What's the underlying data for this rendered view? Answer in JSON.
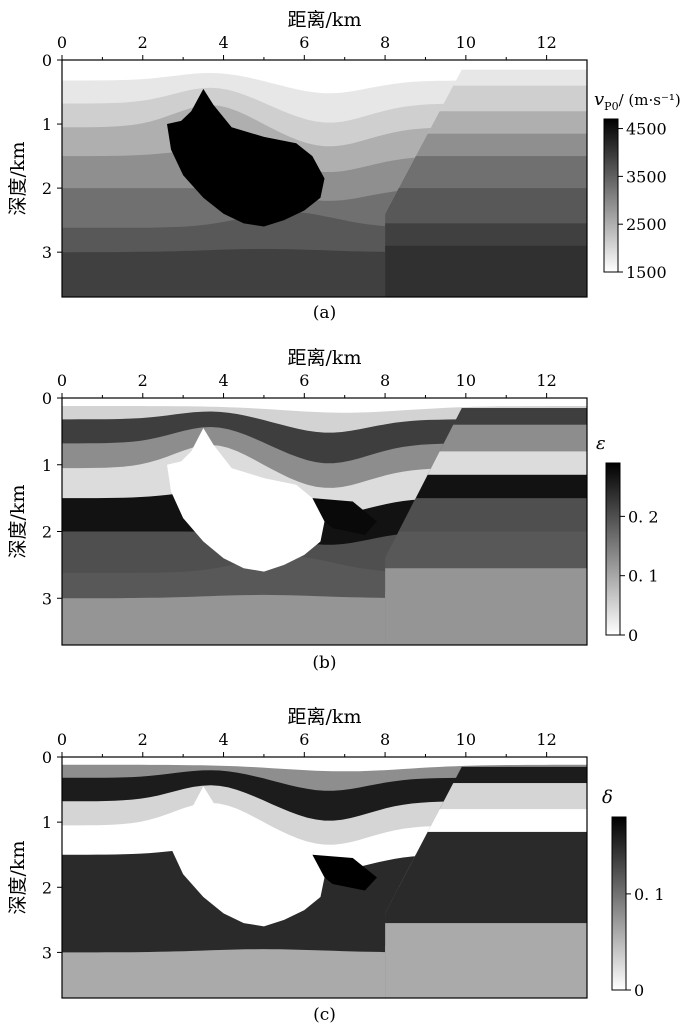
{
  "chart_data": [
    {
      "type": "heatmap",
      "panel_label": "(a)",
      "xlabel": "距离/km",
      "ylabel": "深度/km",
      "x_ticks": [
        0,
        2,
        4,
        6,
        8,
        10,
        12
      ],
      "y_ticks": [
        0,
        1,
        2,
        3
      ],
      "xlim": [
        0,
        13
      ],
      "ylim": [
        0,
        3.7
      ],
      "colorbar": {
        "label_symbol": "v",
        "label_subscript": "P0",
        "label_unit": "/ (m·s⁻¹)",
        "ticks": [
          1500,
          2500,
          3500,
          4500
        ],
        "range": [
          1500,
          4700
        ],
        "colormap": "white-to-black"
      },
      "salt_value": 4700,
      "layers": [
        {
          "layer": 1,
          "value": 1500
        },
        {
          "layer": 2,
          "value": 1800
        },
        {
          "layer": 3,
          "value": 2100
        },
        {
          "layer": 4,
          "value": 2500
        },
        {
          "layer": 5,
          "value": 2900
        },
        {
          "layer": 6,
          "value": 3300
        },
        {
          "layer": 7,
          "value": 3600
        },
        {
          "layer": 8,
          "value": 3900
        },
        {
          "layer": 9,
          "value": 4100
        }
      ]
    },
    {
      "type": "heatmap",
      "panel_label": "(b)",
      "xlabel": "距离/km",
      "ylabel": "深度/km",
      "x_ticks": [
        0,
        2,
        4,
        6,
        8,
        10,
        12
      ],
      "y_ticks": [
        0,
        1,
        2,
        3
      ],
      "xlim": [
        0,
        13
      ],
      "ylim": [
        0,
        3.7
      ],
      "colorbar": {
        "label_symbol": "ε",
        "label_subscript": "",
        "label_unit": "",
        "ticks": [
          0,
          0.1,
          0.2
        ],
        "range": [
          0,
          0.29
        ],
        "colormap": "white-to-black"
      },
      "salt_value": 0,
      "layers": [
        {
          "layer": 1,
          "value": 0.05
        },
        {
          "layer": 2,
          "value": 0.22
        },
        {
          "layer": 3,
          "value": 0.13
        },
        {
          "layer": 4,
          "value": 0.04
        },
        {
          "layer": 5,
          "value": 0.27
        },
        {
          "layer": 6,
          "value": 0.2
        },
        {
          "layer": 7,
          "value": 0.19
        },
        {
          "layer": 8,
          "value": 0.12
        },
        {
          "layer": 9,
          "value": 0.12
        }
      ],
      "lens_value": 0.28
    },
    {
      "type": "heatmap",
      "panel_label": "(c)",
      "xlabel": "距离/km",
      "ylabel": "深度/km",
      "x_ticks": [
        0,
        2,
        4,
        6,
        8,
        10,
        12
      ],
      "y_ticks": [
        0,
        1,
        2,
        3
      ],
      "xlim": [
        0,
        13
      ],
      "ylim": [
        0,
        3.7
      ],
      "colorbar": {
        "label_symbol": "δ",
        "label_subscript": "",
        "label_unit": "",
        "ticks": [
          0,
          0.1
        ],
        "range": [
          0,
          0.18
        ],
        "colormap": "white-to-black"
      },
      "salt_value": 0,
      "layers": [
        {
          "layer": 1,
          "value": 0.08
        },
        {
          "layer": 2,
          "value": 0.16
        },
        {
          "layer": 3,
          "value": 0.03
        },
        {
          "layer": 4,
          "value": 0.0
        },
        {
          "layer": 5,
          "value": 0.15
        },
        {
          "layer": 6,
          "value": 0.15
        },
        {
          "layer": 7,
          "value": 0.15
        },
        {
          "layer": 8,
          "value": 0.06
        },
        {
          "layer": 9,
          "value": 0.06
        }
      ],
      "lens_value": 0.18
    }
  ]
}
